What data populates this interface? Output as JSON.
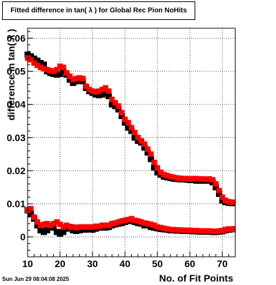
{
  "title": "Fitted difference in tan( λ ) for Global Rec Pion NoHits",
  "timestamp": "Sun Jun 29 08:04:08 2025",
  "chart_data": {
    "type": "scatter",
    "xlabel": "No. of Fit Points",
    "ylabel": "difference in tan( λ )",
    "xlim": [
      10,
      74
    ],
    "ylim": [
      -0.006,
      0.063
    ],
    "x_ticks": [
      10,
      20,
      30,
      40,
      50,
      60,
      70
    ],
    "y_ticks": [
      0,
      0.01,
      0.02,
      0.03,
      0.04,
      0.05,
      0.06
    ],
    "y_tick_labels": [
      "0",
      "0.01",
      "0.02",
      "0.03",
      "0.04",
      "0.05",
      "0.06"
    ],
    "grid": true,
    "x": [
      10,
      11,
      12,
      13,
      14,
      15,
      16,
      17,
      18,
      19,
      20,
      21,
      22,
      23,
      24,
      25,
      26,
      27,
      28,
      29,
      30,
      31,
      32,
      33,
      34,
      35,
      36,
      37,
      38,
      39,
      40,
      41,
      42,
      43,
      44,
      45,
      46,
      47,
      48,
      49,
      50,
      51,
      52,
      53,
      54,
      55,
      56,
      57,
      58,
      59,
      60,
      61,
      62,
      63,
      64,
      65,
      66,
      67,
      68,
      69,
      70,
      71,
      72,
      73
    ],
    "series": [
      {
        "color": "#000000",
        "upper": [
          0.055,
          0.0545,
          0.0538,
          0.0532,
          0.0525,
          0.052,
          0.05,
          0.0495,
          0.0492,
          0.049,
          0.0492,
          0.05,
          0.049,
          0.0475,
          0.0465,
          0.047,
          0.0475,
          0.047,
          0.045,
          0.044,
          0.0435,
          0.043,
          0.0428,
          0.043,
          0.0435,
          0.0425,
          0.04,
          0.0395,
          0.0385,
          0.0365,
          0.0345,
          0.033,
          0.032,
          0.03,
          0.029,
          0.0285,
          0.027,
          0.0255,
          0.0235,
          0.021,
          0.0195,
          0.0188,
          0.0182,
          0.018,
          0.0178,
          0.0176,
          0.0175,
          0.0174,
          0.0174,
          0.0173,
          0.0172,
          0.0172,
          0.017,
          0.017,
          0.017,
          0.017,
          0.017,
          0.0165,
          0.015,
          0.013,
          0.011,
          0.0105,
          0.0103,
          0.0102
        ],
        "lower": [
          0.008,
          0.007,
          0.0055,
          0.0035,
          0.002,
          0.0015,
          0.002,
          0.003,
          0.0028,
          0.0015,
          0.001,
          0.0015,
          0.0025,
          0.003,
          0.002,
          0.0018,
          0.002,
          0.0022,
          0.0022,
          0.0025,
          0.0022,
          0.0025,
          0.0028,
          0.003,
          0.0028,
          0.003,
          0.0035,
          0.0038,
          0.004,
          0.0042,
          0.0045,
          0.0048,
          0.005,
          0.0045,
          0.0042,
          0.004,
          0.0035,
          0.0035,
          0.003,
          0.0028,
          0.0026,
          0.0024,
          0.0023,
          0.0022,
          0.002,
          0.002,
          0.0019,
          0.0019,
          0.0018,
          0.0018,
          0.0018,
          0.0017,
          0.0017,
          0.0016,
          0.0016,
          0.0016,
          0.0016,
          0.0015,
          0.0015,
          0.0016,
          0.0017,
          0.002,
          0.0022,
          0.0023
        ]
      },
      {
        "color": "#ff0000",
        "upper": [
          0.054,
          0.0535,
          0.0525,
          0.0518,
          0.0512,
          0.0508,
          0.0505,
          0.0502,
          0.05,
          0.0505,
          0.0515,
          0.0512,
          0.0495,
          0.0485,
          0.0475,
          0.0478,
          0.048,
          0.0478,
          0.0455,
          0.0445,
          0.044,
          0.0438,
          0.044,
          0.0445,
          0.045,
          0.044,
          0.0415,
          0.0405,
          0.0395,
          0.0375,
          0.0355,
          0.0345,
          0.033,
          0.0315,
          0.03,
          0.029,
          0.028,
          0.0265,
          0.025,
          0.0225,
          0.0208,
          0.0195,
          0.0188,
          0.0185,
          0.0182,
          0.018,
          0.0178,
          0.0177,
          0.0176,
          0.0176,
          0.0175,
          0.0176,
          0.0176,
          0.0175,
          0.0175,
          0.0174,
          0.0175,
          0.0172,
          0.016,
          0.014,
          0.012,
          0.011,
          0.0106,
          0.0105
        ],
        "lower": [
          0.008,
          0.0085,
          0.006,
          0.0045,
          0.0035,
          0.0038,
          0.004,
          0.0035,
          0.004,
          0.0045,
          0.0038,
          0.003,
          0.0035,
          0.003,
          0.003,
          0.0028,
          0.003,
          0.003,
          0.003,
          0.003,
          0.003,
          0.0032,
          0.0032,
          0.0035,
          0.0035,
          0.0035,
          0.004,
          0.0042,
          0.0045,
          0.0048,
          0.005,
          0.0052,
          0.0055,
          0.005,
          0.0048,
          0.0045,
          0.0042,
          0.004,
          0.0038,
          0.0035,
          0.003,
          0.0028,
          0.0026,
          0.0024,
          0.0022,
          0.0022,
          0.0021,
          0.0021,
          0.002,
          0.002,
          0.002,
          0.0019,
          0.0019,
          0.0018,
          0.0018,
          0.0018,
          0.0018,
          0.0017,
          0.0017,
          0.0018,
          0.0019,
          0.0022,
          0.0024,
          0.0023
        ]
      }
    ]
  }
}
